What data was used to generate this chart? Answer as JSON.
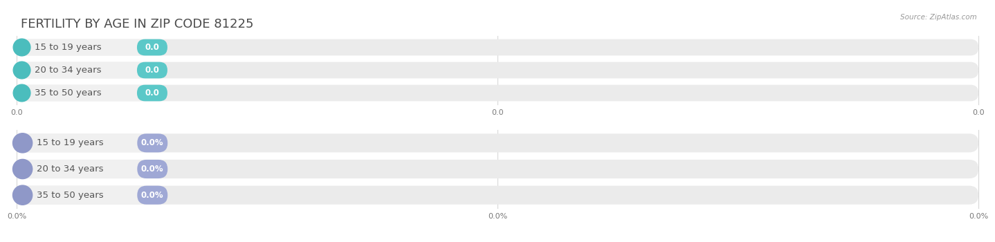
{
  "title": "FERTILITY BY AGE IN ZIP CODE 81225",
  "source": "Source: ZipAtlas.com",
  "top_group": {
    "labels": [
      "15 to 19 years",
      "20 to 34 years",
      "35 to 50 years"
    ],
    "bar_color": "#5bc8c8",
    "circle_color": "#4bbdbd",
    "value_labels": [
      "0.0",
      "0.0",
      "0.0"
    ],
    "tick_labels": [
      "0.0",
      "0.0",
      "0.0"
    ]
  },
  "bottom_group": {
    "labels": [
      "15 to 19 years",
      "20 to 34 years",
      "35 to 50 years"
    ],
    "bar_color": "#9fa8d5",
    "circle_color": "#8f98c8",
    "value_labels": [
      "0.0%",
      "0.0%",
      "0.0%"
    ],
    "tick_labels": [
      "0.0%",
      "0.0%",
      "0.0%"
    ]
  },
  "background_color": "#ffffff",
  "bar_track_color": "#ebebeb",
  "bar_pill_bg": "#f5f5f5",
  "title_fontsize": 13,
  "label_fontsize": 9.5,
  "value_fontsize": 8.5,
  "tick_fontsize": 8,
  "source_fontsize": 7.5
}
